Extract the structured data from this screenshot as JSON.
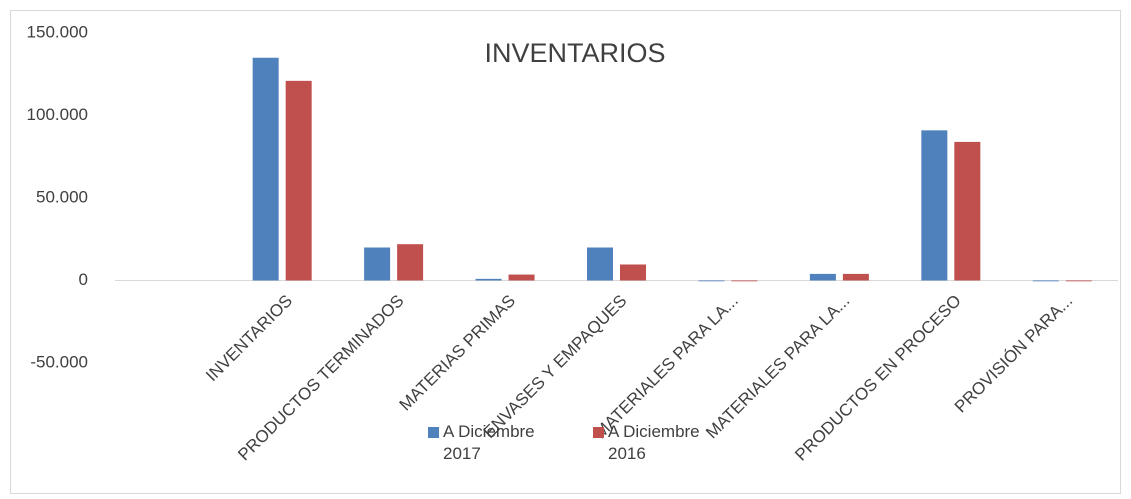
{
  "chart_data": {
    "type": "bar",
    "title": "INVENTARIOS",
    "categories": [
      null,
      "INVENTARIOS",
      "PRODUCTOS TERMINADOS",
      "MATERIAS PRIMAS",
      "ENVASES Y EMPAQUES",
      "MATERIALES PARA LA...",
      "MATERIALES PARA LA...",
      "PRODUCTOS EN PROCESO",
      "PROVISIÓN PARA..."
    ],
    "series": [
      {
        "name": "A Diciembre 2017",
        "color": "#4f81bd",
        "values": [
          null,
          135000,
          20000,
          1000,
          20000,
          0,
          4000,
          91000,
          -500
        ]
      },
      {
        "name": "A Diciembre 2016",
        "color": "#c0504d",
        "values": [
          null,
          121000,
          22000,
          3600,
          9700,
          0,
          4000,
          84000,
          -500
        ]
      }
    ],
    "ylim": [
      -50000,
      150000
    ],
    "yticks": [
      {
        "value": -50000,
        "label": "-50.000"
      },
      0,
      {
        "value": 50000,
        "label": "50.000"
      },
      {
        "value": 100000,
        "label": "100.000"
      },
      {
        "value": 150000,
        "label": "150.000"
      }
    ],
    "grid": false,
    "legend": "bottom"
  }
}
